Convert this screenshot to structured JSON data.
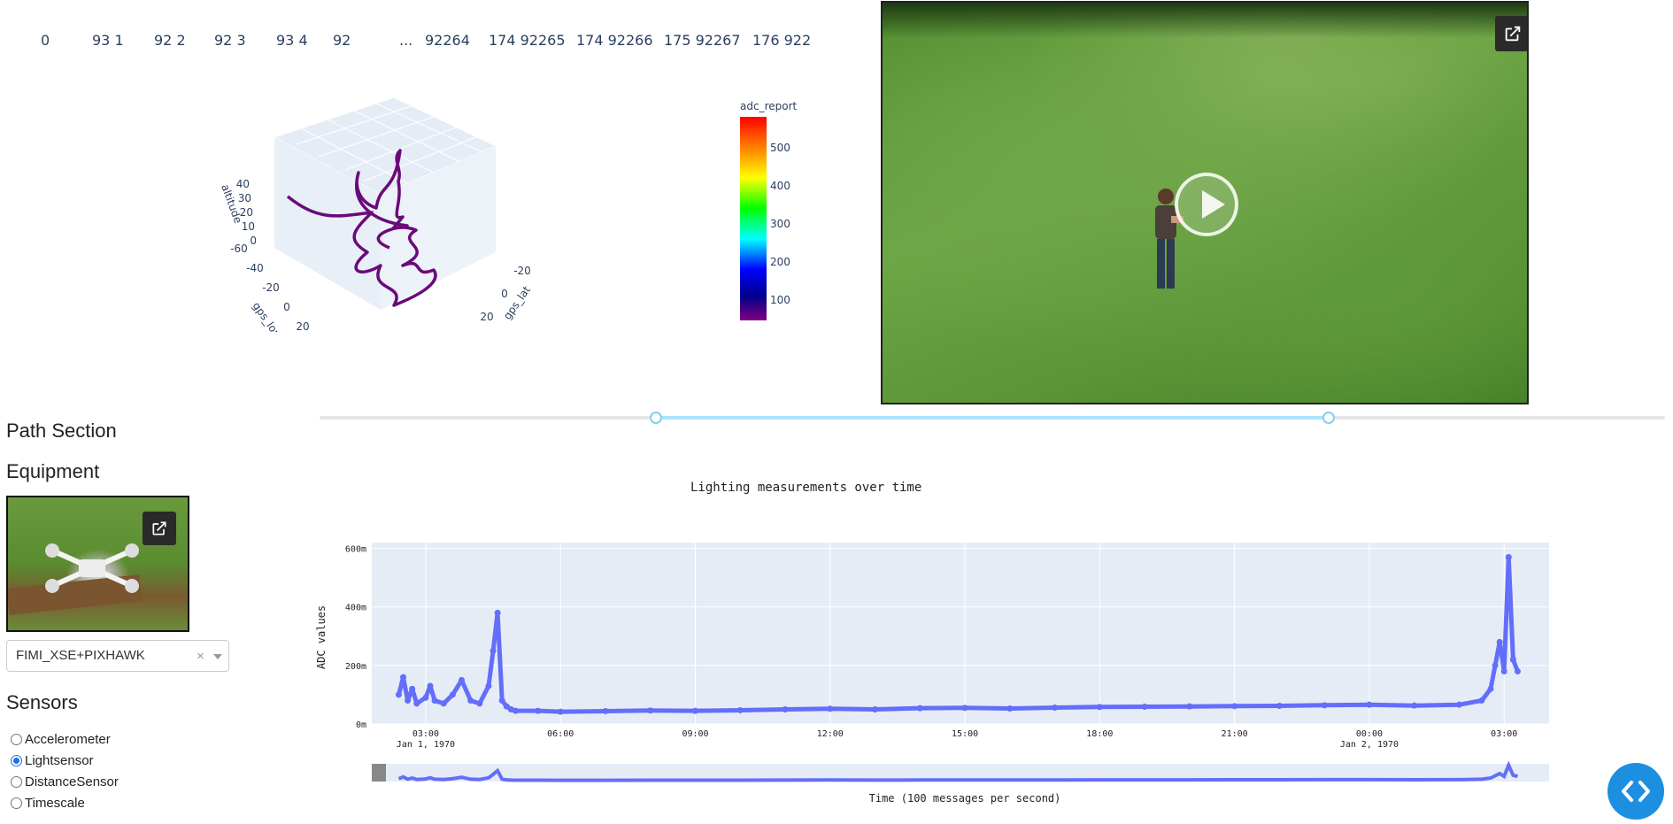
{
  "top_strip": {
    "items": [
      "0",
      "93 1",
      "92 2",
      "92 3",
      "93 4",
      "92",
      "...",
      "92264",
      "174 92265",
      "174 92266",
      "175 92267",
      "176 922"
    ]
  },
  "plot3d": {
    "z_axis_label": "altitude",
    "x_axis_label": "gps_lon",
    "y_axis_label": "gps_lat",
    "z_ticks": [
      "40",
      "30",
      "20",
      "10",
      "0"
    ],
    "x_ticks": [
      "-60",
      "-40",
      "-20",
      "0",
      "20"
    ],
    "y_ticks": [
      "-20",
      "0",
      "20"
    ],
    "line_color": "#6a0a7a",
    "colorbar": {
      "title": "adc_report",
      "ticks": [
        "500",
        "400",
        "300",
        "200",
        "100"
      ]
    }
  },
  "video": {
    "external_link_icon": "open-in-new-icon",
    "play_icon": "play-icon"
  },
  "range_slider": {
    "low_fraction": 0.25,
    "high_fraction": 0.75
  },
  "sidebar": {
    "path_section": "Path Section",
    "equipment": "Equipment",
    "equipment_select_value": "FIMI_XSE+PIXHAWK",
    "clear_symbol": "×",
    "sensors_title": "Sensors",
    "sensors": [
      {
        "label": "Accelerometer",
        "checked": false
      },
      {
        "label": "Lightsensor",
        "checked": true
      },
      {
        "label": "DistanceSensor",
        "checked": false
      },
      {
        "label": "Timescale",
        "checked": false
      }
    ]
  },
  "chart_data": {
    "type": "line",
    "title": "Lighting measurements over time",
    "xlabel": "Time (100 messages per second)",
    "ylabel": "ADC values",
    "y_ticks": [
      "0m",
      "200m",
      "400m",
      "600m"
    ],
    "x_ticks": [
      "03:00",
      "06:00",
      "09:00",
      "12:00",
      "15:00",
      "18:00",
      "21:00",
      "00:00",
      "03:00"
    ],
    "x_tick_sublabels": {
      "03:00": "Jan 1, 1970",
      "00:00": "Jan 2, 1970"
    },
    "ylim": [
      0,
      0.62
    ],
    "xlim_hours": [
      1.8,
      28.0
    ],
    "series_color": "#636efa",
    "series": [
      {
        "x_hours": [
          2.4,
          2.5,
          2.6,
          2.7,
          2.8,
          3.0,
          3.1,
          3.2,
          3.4,
          3.6,
          3.8,
          4.0,
          4.2,
          4.4,
          4.5,
          4.6,
          4.7,
          4.8,
          4.9,
          5.0,
          5.5,
          6.0,
          7.0,
          8.0,
          9.0,
          10.0,
          11.0,
          12.0,
          13.0,
          14.0,
          15.0,
          16.0,
          17.0,
          18.0,
          19.0,
          20.0,
          21.0,
          22.0,
          23.0,
          24.0,
          25.0,
          26.0,
          26.5,
          26.7,
          26.8,
          26.9,
          27.0,
          27.1,
          27.2,
          27.3
        ],
        "y": [
          0.1,
          0.16,
          0.08,
          0.12,
          0.07,
          0.09,
          0.13,
          0.08,
          0.07,
          0.1,
          0.15,
          0.08,
          0.07,
          0.13,
          0.25,
          0.38,
          0.08,
          0.06,
          0.05,
          0.045,
          0.045,
          0.042,
          0.044,
          0.046,
          0.045,
          0.047,
          0.05,
          0.052,
          0.05,
          0.054,
          0.055,
          0.053,
          0.056,
          0.058,
          0.059,
          0.06,
          0.061,
          0.062,
          0.064,
          0.066,
          0.063,
          0.066,
          0.08,
          0.12,
          0.2,
          0.28,
          0.18,
          0.57,
          0.22,
          0.18
        ]
      }
    ]
  },
  "fab": {
    "icon": "code-icon"
  }
}
